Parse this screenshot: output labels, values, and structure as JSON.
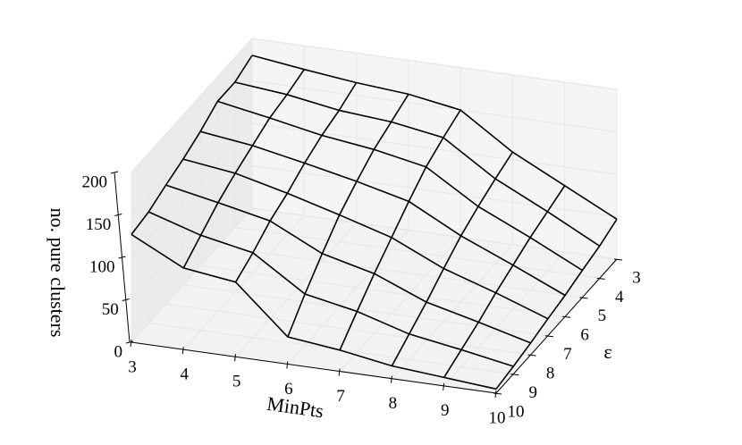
{
  "chart_data": {
    "type": "wireframe3d",
    "xlabel": "MinPts",
    "ylabel": "ε",
    "zlabel": "no. pure clusters",
    "x": [
      3,
      4,
      5,
      6,
      7,
      8,
      9,
      10
    ],
    "y": [
      3,
      4,
      5,
      6,
      7,
      8,
      9,
      10
    ],
    "z": [
      [
        180,
        172,
        165,
        160,
        150,
        109,
        78,
        47
      ],
      [
        171,
        165,
        155,
        150,
        140,
        100,
        70,
        38
      ],
      [
        171,
        160,
        148,
        140,
        128,
        90,
        62,
        32
      ],
      [
        158,
        150,
        138,
        125,
        110,
        78,
        52,
        25
      ],
      [
        148,
        140,
        125,
        108,
        90,
        62,
        42,
        20
      ],
      [
        140,
        128,
        115,
        85,
        70,
        45,
        30,
        14
      ],
      [
        131,
        112,
        100,
        60,
        48,
        30,
        20,
        9
      ],
      [
        127,
        96,
        88,
        32,
        25,
        15,
        10,
        5
      ]
    ],
    "xlim": [
      3,
      10
    ],
    "ylim": [
      3,
      10
    ],
    "zlim": [
      0,
      200
    ],
    "xticks": [
      3,
      4,
      5,
      6,
      7,
      8,
      9,
      10
    ],
    "yticks": [
      3,
      4,
      5,
      6,
      7,
      8,
      9,
      10
    ],
    "zticks": [
      0,
      50,
      100,
      150,
      200
    ],
    "color": "#000000",
    "grid": true
  }
}
